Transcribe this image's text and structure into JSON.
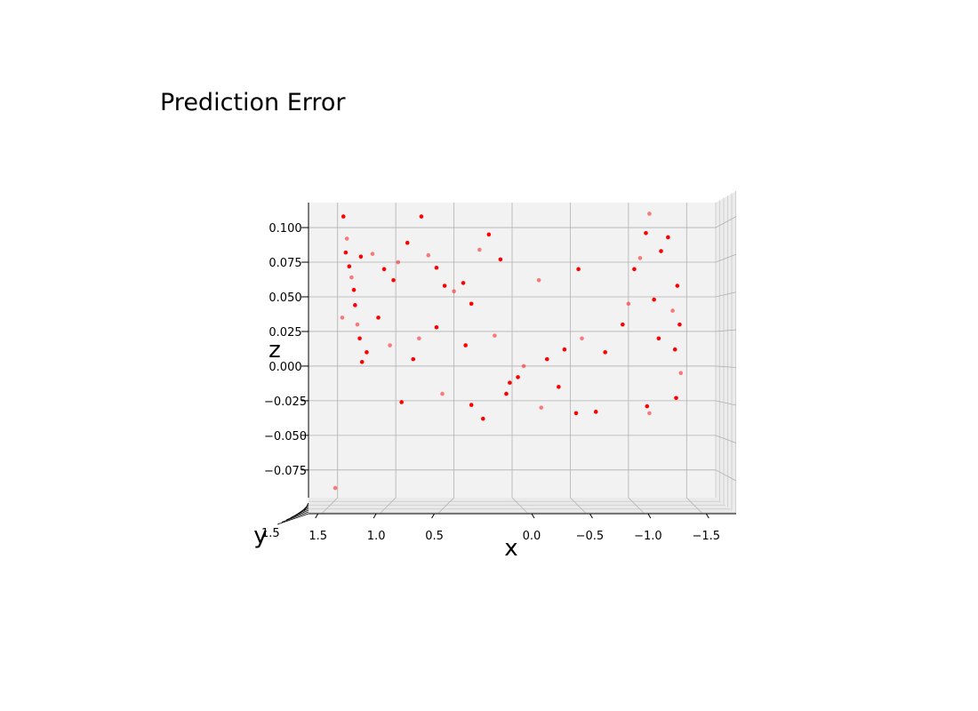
{
  "chart_data": {
    "type": "scatter",
    "title": "Prediction Error",
    "xlabel": "x",
    "ylabel": "y",
    "zlabel": "z",
    "xlim": [
      -1.75,
      1.75
    ],
    "zlim": [
      -0.095,
      0.118
    ],
    "x_ticks": [
      1.5,
      1.0,
      0.5,
      0.0,
      -0.5,
      -1.0,
      -1.5
    ],
    "x_tick_labels": [
      "1.5",
      "1.0",
      "0.5",
      "0.0",
      "−0.5",
      "−1.0",
      "−1.5"
    ],
    "z_ticks": [
      0.1,
      0.075,
      0.05,
      0.025,
      0.0,
      -0.025,
      -0.05,
      -0.075
    ],
    "z_tick_labels": [
      "0.100",
      "0.075",
      "0.050",
      "0.025",
      "0.000",
      "−0.025",
      "−0.050",
      "−0.075"
    ],
    "y_tick_labels_visible": "1.5",
    "x_axis_direction": "reversed",
    "grid": true,
    "marker_color": "#ff0000",
    "series": [
      {
        "points": [
          {
            "x": 1.42,
            "z": 0.092
          },
          {
            "x": 1.45,
            "z": 0.108
          },
          {
            "x": 1.4,
            "z": 0.072
          },
          {
            "x": 1.38,
            "z": 0.064
          },
          {
            "x": 1.36,
            "z": 0.055
          },
          {
            "x": 1.35,
            "z": 0.044
          },
          {
            "x": 1.33,
            "z": 0.03
          },
          {
            "x": 1.31,
            "z": 0.02
          },
          {
            "x": 1.29,
            "z": 0.003
          },
          {
            "x": 1.46,
            "z": 0.035
          },
          {
            "x": 1.43,
            "z": 0.082
          },
          {
            "x": 1.3,
            "z": 0.079
          },
          {
            "x": 1.2,
            "z": 0.081
          },
          {
            "x": 1.1,
            "z": 0.07
          },
          {
            "x": 1.02,
            "z": 0.062
          },
          {
            "x": 0.98,
            "z": 0.075
          },
          {
            "x": 0.9,
            "z": 0.089
          },
          {
            "x": 0.78,
            "z": 0.108
          },
          {
            "x": 0.72,
            "z": 0.08
          },
          {
            "x": 0.65,
            "z": 0.071
          },
          {
            "x": 0.58,
            "z": 0.058
          },
          {
            "x": 0.5,
            "z": 0.054
          },
          {
            "x": 0.42,
            "z": 0.06
          },
          {
            "x": 0.35,
            "z": 0.045
          },
          {
            "x": 0.28,
            "z": 0.084
          },
          {
            "x": 0.2,
            "z": 0.095
          },
          {
            "x": 0.1,
            "z": 0.077
          },
          {
            "x": -0.23,
            "z": 0.062
          },
          {
            "x": -0.57,
            "z": 0.07
          },
          {
            "x": -1.15,
            "z": 0.096
          },
          {
            "x": -1.18,
            "z": 0.11
          },
          {
            "x": -1.28,
            "z": 0.083
          },
          {
            "x": -1.34,
            "z": 0.093
          },
          {
            "x": -1.1,
            "z": 0.078
          },
          {
            "x": -1.05,
            "z": 0.07
          },
          {
            "x": -1.42,
            "z": 0.058
          },
          {
            "x": -1.38,
            "z": 0.04
          },
          {
            "x": -1.44,
            "z": 0.03
          },
          {
            "x": -1.4,
            "z": 0.012
          },
          {
            "x": -1.45,
            "z": -0.005
          },
          {
            "x": -1.41,
            "z": -0.023
          },
          {
            "x": -1.16,
            "z": -0.029
          },
          {
            "x": -1.18,
            "z": -0.034
          },
          {
            "x": -0.72,
            "z": -0.033
          },
          {
            "x": -0.55,
            "z": -0.034
          },
          {
            "x": -0.25,
            "z": -0.03
          },
          {
            "x": 0.05,
            "z": -0.02
          },
          {
            "x": 0.35,
            "z": -0.028
          },
          {
            "x": 0.6,
            "z": -0.02
          },
          {
            "x": 0.95,
            "z": -0.026
          },
          {
            "x": 1.25,
            "z": 0.01
          },
          {
            "x": 1.52,
            "z": -0.088
          },
          {
            "x": 0.25,
            "z": -0.038
          },
          {
            "x": 0.02,
            "z": -0.012
          },
          {
            "x": -0.1,
            "z": 0.0
          },
          {
            "x": -0.3,
            "z": 0.005
          },
          {
            "x": -0.45,
            "z": 0.012
          },
          {
            "x": -0.6,
            "z": 0.02
          },
          {
            "x": -0.8,
            "z": 0.01
          },
          {
            "x": -0.95,
            "z": 0.03
          },
          {
            "x": -1.0,
            "z": 0.045
          },
          {
            "x": -1.22,
            "z": 0.048
          },
          {
            "x": -1.26,
            "z": 0.02
          },
          {
            "x": 0.8,
            "z": 0.02
          },
          {
            "x": 0.85,
            "z": 0.005
          },
          {
            "x": 1.15,
            "z": 0.035
          },
          {
            "x": 1.05,
            "z": 0.015
          },
          {
            "x": 0.65,
            "z": 0.028
          },
          {
            "x": 0.4,
            "z": 0.015
          },
          {
            "x": 0.15,
            "z": 0.022
          },
          {
            "x": -0.05,
            "z": -0.008
          },
          {
            "x": -0.4,
            "z": -0.015
          }
        ]
      }
    ]
  }
}
